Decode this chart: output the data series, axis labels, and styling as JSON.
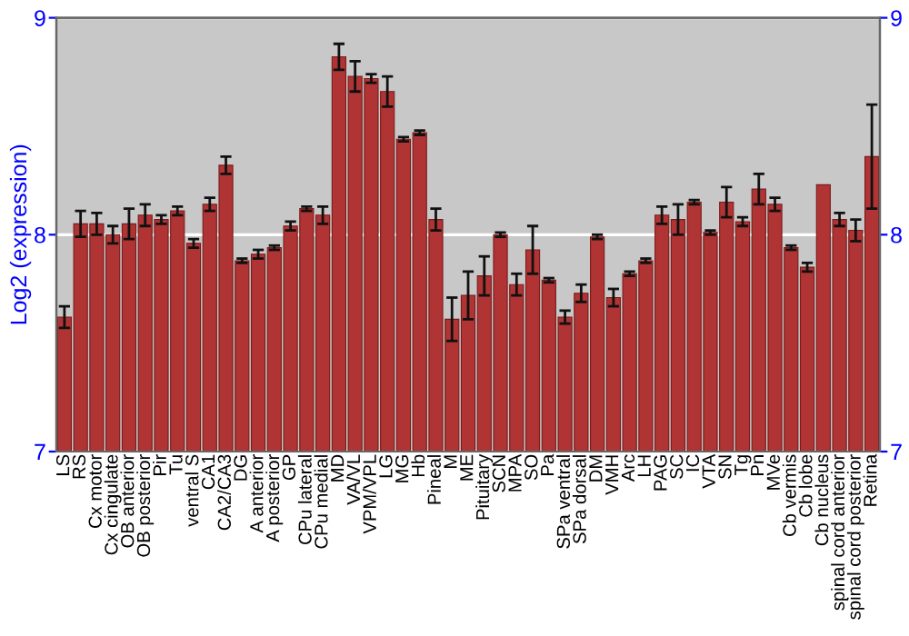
{
  "chart_data": {
    "type": "bar",
    "ylabel": "Log2 (expression)",
    "categories": [
      "LS",
      "RS",
      "Cx motor",
      "Cx cingulate",
      "OB anterior",
      "OB posterior",
      "Pir",
      "Tu",
      "ventral S",
      "CA1",
      "CA2/CA3",
      "DG",
      "A anterior",
      "A posterior",
      "GP",
      "CPu lateral",
      "CPu medial",
      "MD",
      "VA/VL",
      "VPM/VPL",
      "LG",
      "MG",
      "Hb",
      "Pineal",
      "M",
      "ME",
      "Pituitary",
      "SCN",
      "MPA",
      "SO",
      "Pa",
      "SPa ventral",
      "SPa dorsal",
      "DM",
      "VMH",
      "Arc",
      "LH",
      "PAG",
      "SC",
      "IC",
      "VTA",
      "SN",
      "Tg",
      "Pn",
      "MVe",
      "Cb vermis",
      "Cb lobe",
      "Cb nucleus",
      "spinal cord anterior",
      "spinal cord posterior",
      "Retina"
    ],
    "values": [
      7.62,
      8.05,
      8.05,
      8.0,
      8.05,
      8.09,
      8.07,
      8.11,
      7.96,
      8.14,
      8.32,
      7.88,
      7.91,
      7.94,
      8.04,
      8.12,
      8.09,
      8.82,
      8.73,
      8.72,
      8.66,
      8.44,
      8.47,
      8.07,
      7.61,
      7.72,
      7.81,
      8.0,
      7.77,
      7.93,
      7.79,
      7.62,
      7.73,
      7.99,
      7.71,
      7.82,
      7.88,
      8.09,
      8.07,
      8.15,
      8.01,
      8.15,
      8.06,
      8.21,
      8.14,
      7.94,
      7.85,
      8.23,
      8.07,
      8.02,
      8.36
    ],
    "errors": [
      0.05,
      0.06,
      0.05,
      0.04,
      0.07,
      0.05,
      0.02,
      0.02,
      0.02,
      0.03,
      0.04,
      0.01,
      0.02,
      0.01,
      0.02,
      0.01,
      0.04,
      0.06,
      0.07,
      0.02,
      0.07,
      0.01,
      0.01,
      0.05,
      0.1,
      0.11,
      0.09,
      0.01,
      0.05,
      0.11,
      0.01,
      0.03,
      0.04,
      0.01,
      0.04,
      0.01,
      0.01,
      0.04,
      0.07,
      0.01,
      0.01,
      0.07,
      0.02,
      0.07,
      0.03,
      0.01,
      0.02,
      null,
      0.03,
      0.05,
      0.24
    ],
    "color": "#b03434",
    "ylim": [
      7,
      9
    ],
    "yticks": [
      7,
      8,
      9
    ],
    "y2lim": [
      7,
      9
    ],
    "y2ticks": [
      7,
      8,
      9
    ],
    "grid": "y"
  }
}
